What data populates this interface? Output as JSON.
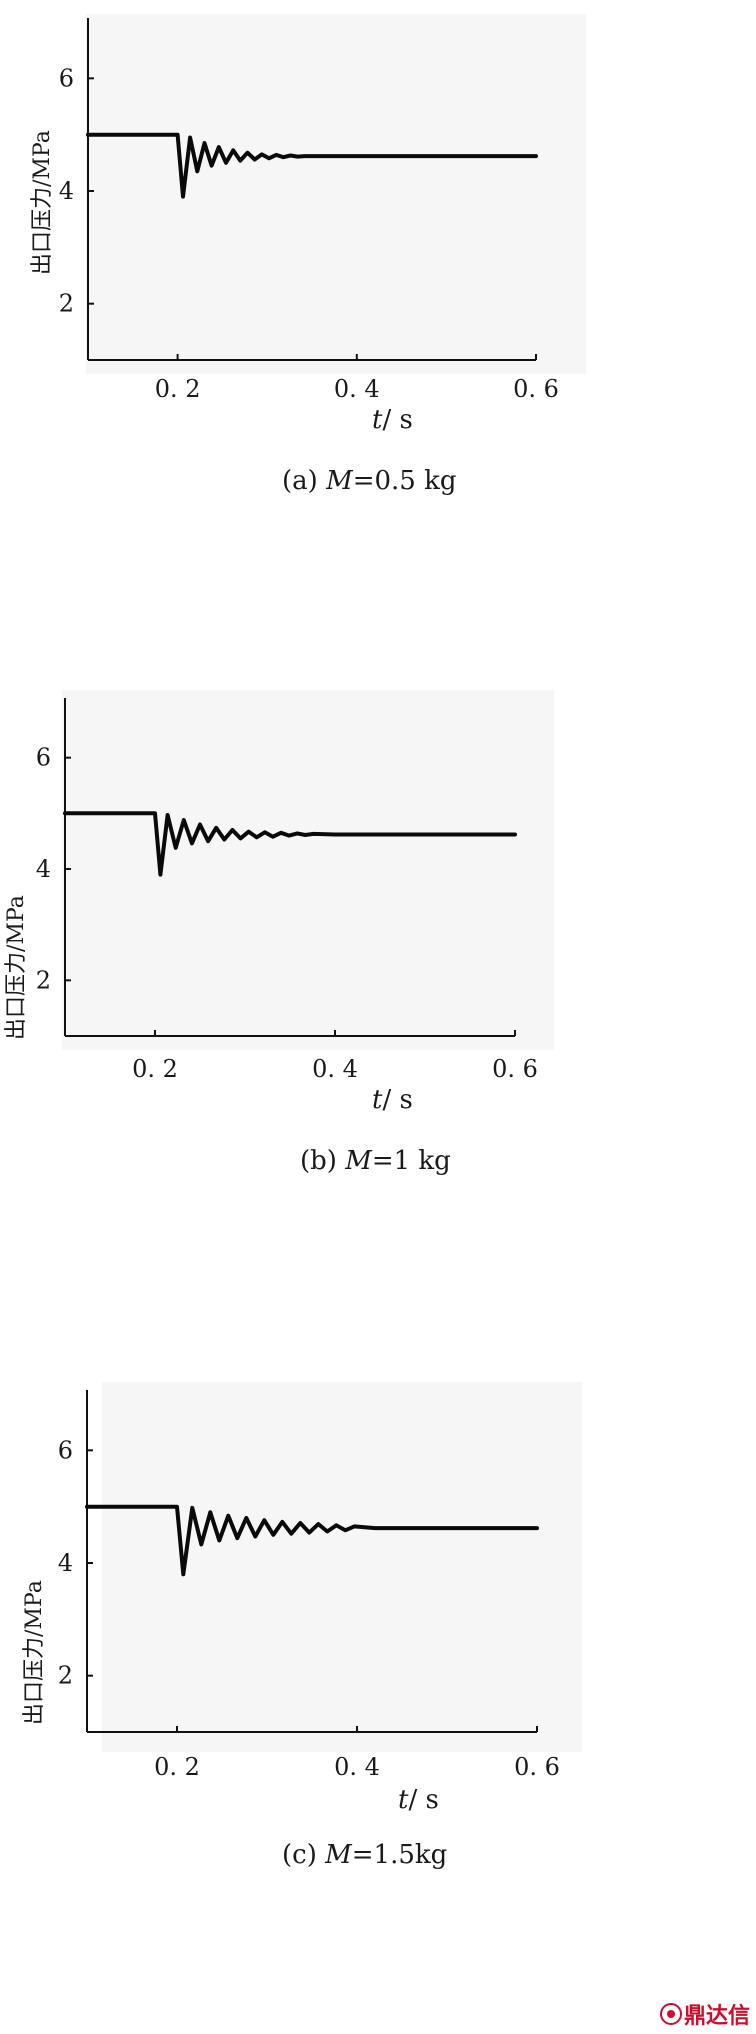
{
  "chart_data": [
    {
      "type": "line",
      "panel_id": "a",
      "caption_prefix": "(a)",
      "caption_mass": "M",
      "caption_value": "=0.5 kg",
      "xlabel_var": "t",
      "xlabel_unit": "/ s",
      "ylabel": "出口压力/MPa",
      "xlim": [
        0.1,
        0.6
      ],
      "ylim": [
        1,
        7
      ],
      "xticks": [
        "0. 2",
        "0. 4",
        "0. 6"
      ],
      "xtick_values": [
        0.2,
        0.4,
        0.6
      ],
      "yticks": [
        "2",
        "4",
        "6"
      ],
      "ytick_values": [
        2,
        4,
        6
      ],
      "series": [
        {
          "initial": 5.0,
          "step_time": 0.2,
          "final": 4.62,
          "first_min": 3.9,
          "period": 0.016,
          "settle_time": 0.34,
          "x": [
            0.1,
            0.2,
            0.206,
            0.214,
            0.222,
            0.23,
            0.238,
            0.246,
            0.254,
            0.262,
            0.27,
            0.278,
            0.286,
            0.294,
            0.302,
            0.31,
            0.318,
            0.326,
            0.334,
            0.342,
            0.35,
            0.36,
            0.4,
            0.6
          ],
          "y": [
            5.0,
            5.0,
            3.9,
            4.95,
            4.35,
            4.85,
            4.45,
            4.78,
            4.5,
            4.72,
            4.54,
            4.68,
            4.56,
            4.65,
            4.58,
            4.64,
            4.6,
            4.63,
            4.61,
            4.62,
            4.62,
            4.62,
            4.62,
            4.62
          ]
        }
      ]
    },
    {
      "type": "line",
      "panel_id": "b",
      "caption_prefix": "(b)",
      "caption_mass": "M",
      "caption_value": "=1 kg",
      "xlabel_var": "t",
      "xlabel_unit": "/ s",
      "ylabel": "出口压力/MPa",
      "xlim": [
        0.1,
        0.6
      ],
      "ylim": [
        1,
        7
      ],
      "xticks": [
        "0. 2",
        "0. 4",
        "0. 6"
      ],
      "xtick_values": [
        0.2,
        0.4,
        0.6
      ],
      "yticks": [
        "2",
        "4",
        "6"
      ],
      "ytick_values": [
        2,
        4,
        6
      ],
      "series": [
        {
          "x": [
            0.1,
            0.2,
            0.206,
            0.214,
            0.223,
            0.232,
            0.241,
            0.25,
            0.259,
            0.268,
            0.277,
            0.286,
            0.295,
            0.304,
            0.313,
            0.322,
            0.331,
            0.34,
            0.349,
            0.358,
            0.367,
            0.376,
            0.4,
            0.6
          ],
          "y": [
            5.0,
            5.0,
            3.9,
            4.97,
            4.38,
            4.88,
            4.46,
            4.8,
            4.5,
            4.74,
            4.53,
            4.7,
            4.55,
            4.67,
            4.57,
            4.66,
            4.58,
            4.65,
            4.6,
            4.64,
            4.61,
            4.63,
            4.62,
            4.62
          ]
        }
      ]
    },
    {
      "type": "line",
      "panel_id": "c",
      "caption_prefix": "(c)",
      "caption_mass": "M",
      "caption_value": "=1.5kg",
      "xlabel_var": "t",
      "xlabel_unit": "/ s",
      "ylabel": "出口压力/MPa",
      "xlim": [
        0.1,
        0.6
      ],
      "ylim": [
        1,
        7
      ],
      "xticks": [
        "0. 2",
        "0. 4",
        "0. 6"
      ],
      "xtick_values": [
        0.2,
        0.4,
        0.6
      ],
      "yticks": [
        "2",
        "4",
        "6"
      ],
      "ytick_values": [
        2,
        4,
        6
      ],
      "series": [
        {
          "x": [
            0.1,
            0.2,
            0.207,
            0.217,
            0.227,
            0.237,
            0.247,
            0.257,
            0.267,
            0.277,
            0.287,
            0.297,
            0.307,
            0.317,
            0.327,
            0.337,
            0.347,
            0.357,
            0.367,
            0.377,
            0.387,
            0.397,
            0.42,
            0.6
          ],
          "y": [
            5.0,
            5.0,
            3.8,
            4.98,
            4.33,
            4.9,
            4.4,
            4.84,
            4.44,
            4.8,
            4.47,
            4.76,
            4.5,
            4.73,
            4.52,
            4.71,
            4.54,
            4.69,
            4.56,
            4.67,
            4.58,
            4.65,
            4.62,
            4.62
          ]
        }
      ]
    }
  ],
  "watermark": {
    "text": "鼎达信",
    "color": "#c8102e",
    "icon": "circle-logo-icon"
  }
}
